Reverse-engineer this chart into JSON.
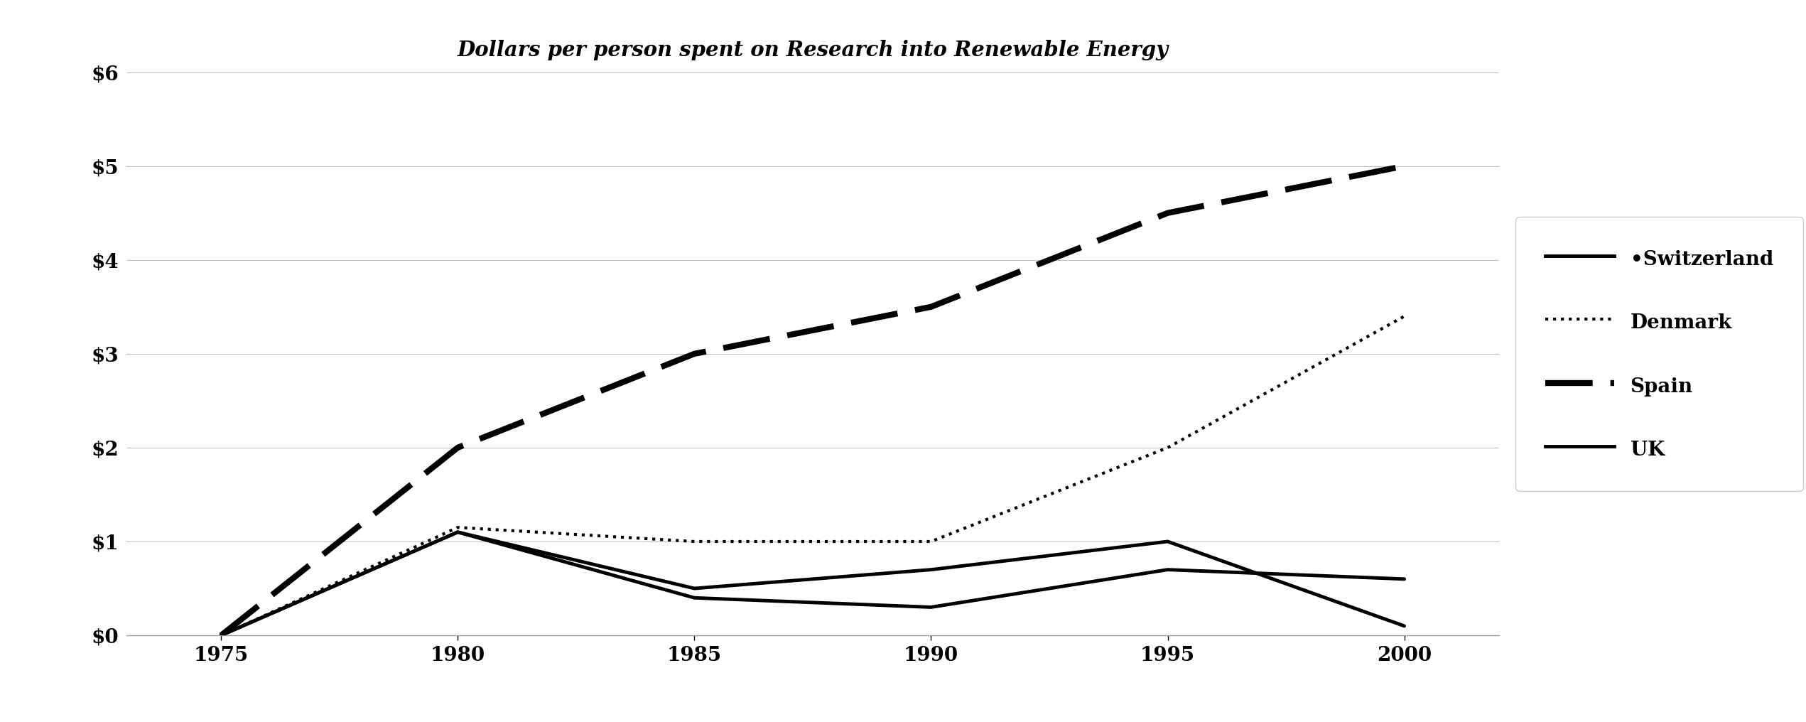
{
  "title": "Dollars per person spent on Research into Renewable Energy",
  "years": [
    1975,
    1980,
    1985,
    1990,
    1995,
    2000
  ],
  "switzerland_values": [
    0,
    1.1,
    0.5,
    0.7,
    1.0,
    0.1
  ],
  "denmark_values": [
    0,
    1.15,
    1.0,
    1.0,
    2.0,
    3.4
  ],
  "spain_values": [
    0,
    2.0,
    3.0,
    3.5,
    4.5,
    5.0
  ],
  "uk_values": [
    0,
    1.1,
    0.4,
    0.3,
    0.7,
    0.6
  ],
  "ylim": [
    0,
    6
  ],
  "yticks": [
    0,
    1,
    2,
    3,
    4,
    5,
    6
  ],
  "ytick_labels": [
    "$0",
    "$1",
    "$2",
    "$3",
    "$4",
    "$5",
    "$6"
  ],
  "xticks": [
    1975,
    1980,
    1985,
    1990,
    1995,
    2000
  ],
  "xlim_left": 1973,
  "xlim_right": 2002,
  "background_color": "#ffffff",
  "grid_color": "#bbbbbb",
  "line_color": "#000000",
  "title_fontsize": 21,
  "tick_fontsize": 20,
  "legend_fontsize": 20,
  "switzerland_lw": 3.5,
  "denmark_lw": 3.0,
  "spain_lw": 6.0,
  "uk_lw": 3.5
}
